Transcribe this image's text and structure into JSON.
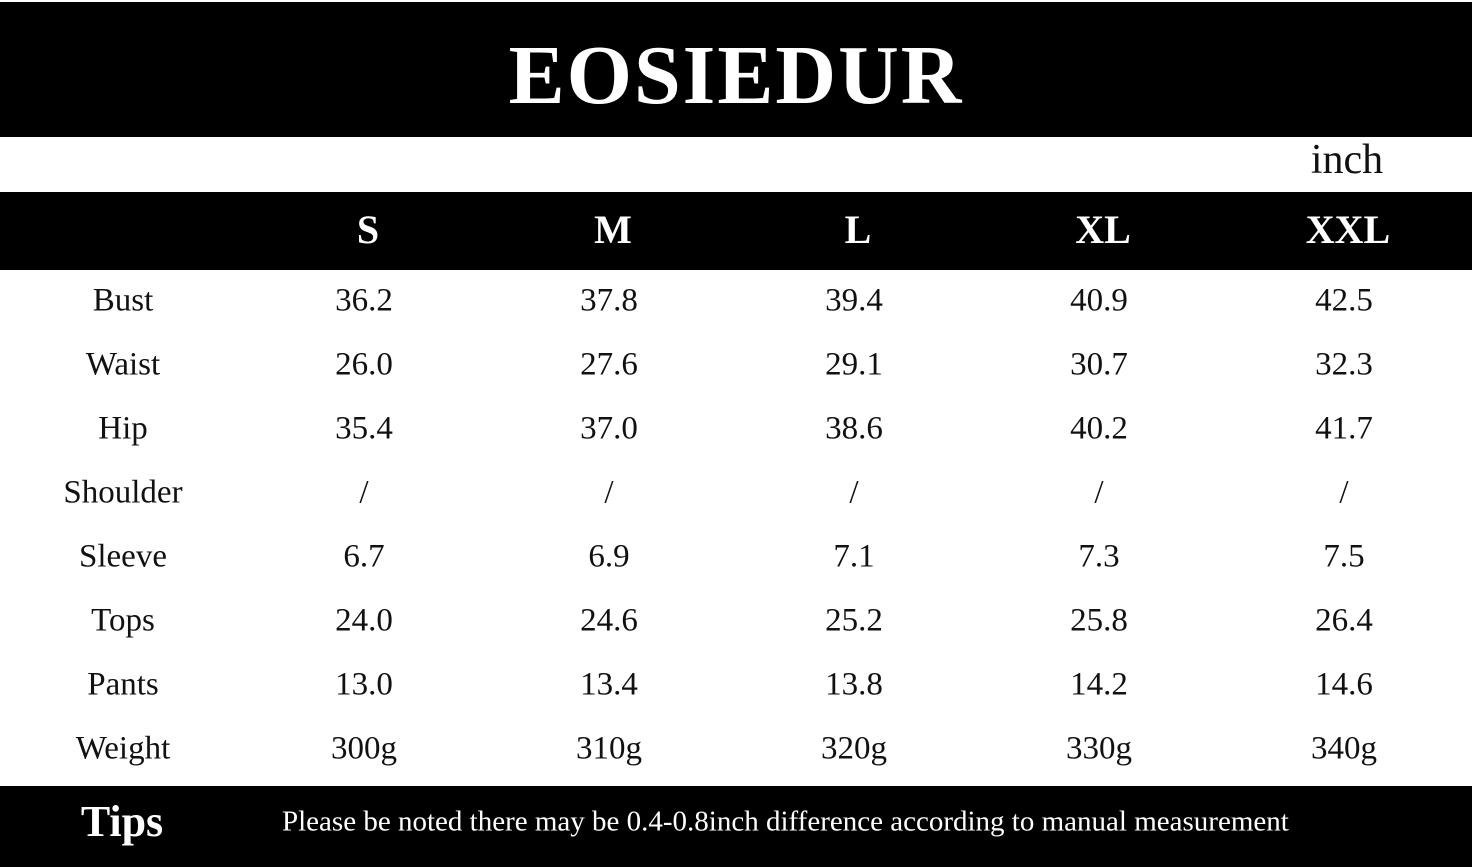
{
  "header": {
    "title": "EOSIEDUR",
    "unit": "inch"
  },
  "table": {
    "columns": [
      "S",
      "M",
      "L",
      "XL",
      "XXL"
    ],
    "rows": [
      [
        "Bust",
        "36.2",
        "37.8",
        "39.4",
        "40.9",
        "42.5"
      ],
      [
        "Waist",
        "26.0",
        "27.6",
        "29.1",
        "30.7",
        "32.3"
      ],
      [
        "Hip",
        "35.4",
        "37.0",
        "38.6",
        "40.2",
        "41.7"
      ],
      [
        "Shoulder",
        "/",
        "/",
        "/",
        "/",
        "/"
      ],
      [
        "Sleeve",
        "6.7",
        "6.9",
        "7.1",
        "7.3",
        "7.5"
      ],
      [
        "Tops",
        "24.0",
        "24.6",
        "25.2",
        "25.8",
        "26.4"
      ],
      [
        "Pants",
        "13.0",
        "13.4",
        "13.8",
        "14.2",
        "14.6"
      ],
      [
        "Weight",
        "300g",
        "310g",
        "320g",
        "330g",
        "340g"
      ]
    ]
  },
  "tips": {
    "label": "Tips",
    "note": "Please be noted there may be 0.4-0.8inch difference according to manual measurement"
  }
}
